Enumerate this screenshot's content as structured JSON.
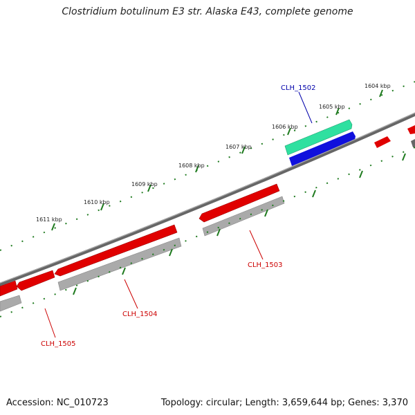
{
  "title": "Clostridium botulinum E3 str. Alaska E43, complete genome",
  "accession": "Accession: NC_010723",
  "summary": "Topology: circular; Length: 3,659,644 bp; Genes: 3,370",
  "kbp_labels": [
    "1604 kbp",
    "1605 kbp",
    "1606 kbp",
    "1607 kbp",
    "1608 kbp",
    "1609 kbp",
    "1610 kbp",
    "1611 kbp"
  ],
  "gene_labels": [
    "CLH_1502",
    "CLH_1503",
    "CLH_1504",
    "CLH_1505"
  ],
  "colors": {
    "backbone": "#777777",
    "tick": "#1e7a1e",
    "cds_forward": "#e00000",
    "cds_grey": "#aaaaaa",
    "gene_green": "#2fe0a0",
    "gene_blue": "#1010dd",
    "label_blue": "#0000aa",
    "label_red": "#cc0000"
  }
}
